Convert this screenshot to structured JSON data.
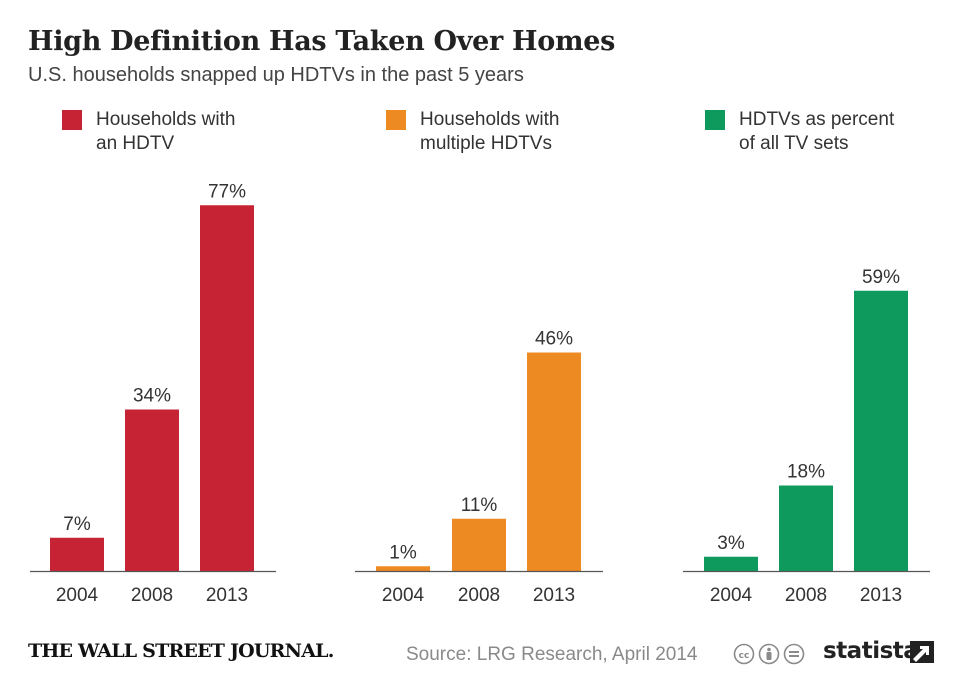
{
  "header": {
    "title": "High Definition Has Taken Over Homes",
    "subtitle": "U.S. households snapped up HDTVs in the past 5 years"
  },
  "legend": [
    {
      "lines": [
        "Households with",
        "an HDTV"
      ],
      "color": "#c62434"
    },
    {
      "lines": [
        "Households with",
        "multiple HDTVs"
      ],
      "color": "#ee8a22"
    },
    {
      "lines": [
        "HDTVs as percent",
        "of all TV sets"
      ],
      "color": "#0e9a5c"
    }
  ],
  "chart_data": [
    {
      "type": "bar",
      "categories": [
        "2004",
        "2008",
        "2013"
      ],
      "values": [
        7,
        34,
        77
      ],
      "value_labels": [
        "7%",
        "34%",
        "77%"
      ],
      "series": [
        {
          "name": "Households with an HDTV",
          "values": [
            7,
            34,
            77
          ]
        }
      ],
      "ylim": [
        0,
        80
      ],
      "grid": false,
      "color": "#c62434"
    },
    {
      "type": "bar",
      "categories": [
        "2004",
        "2008",
        "2013"
      ],
      "values": [
        1,
        11,
        46
      ],
      "value_labels": [
        "1%",
        "11%",
        "46%"
      ],
      "series": [
        {
          "name": "Households with multiple HDTVs",
          "values": [
            1,
            11,
            46
          ]
        }
      ],
      "ylim": [
        0,
        80
      ],
      "grid": false,
      "color": "#ee8a22"
    },
    {
      "type": "bar",
      "categories": [
        "2004",
        "2008",
        "2013"
      ],
      "values": [
        3,
        18,
        59
      ],
      "value_labels": [
        "3%",
        "18%",
        "59%"
      ],
      "series": [
        {
          "name": "HDTVs as percent of all TV sets",
          "values": [
            3,
            18,
            59
          ]
        }
      ],
      "ylim": [
        0,
        80
      ],
      "grid": false,
      "color": "#0e9a5c"
    }
  ],
  "footer": {
    "publisher": "THE WALL STREET JOURNAL.",
    "source": "Source: LRG Research, April 2014",
    "license_icons": [
      "cc-icon",
      "attribution-icon",
      "no-derivatives-icon"
    ],
    "brand": "statista"
  }
}
